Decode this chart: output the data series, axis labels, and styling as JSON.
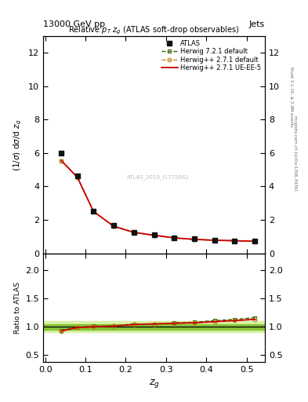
{
  "title_top": "13000 GeV pp",
  "title_top_right": "Jets",
  "plot_title": "Relative $p_T$ $z_g$ (ATLAS soft-drop observables)",
  "ylabel_main": "(1/$\\sigma$) d$\\sigma$/d $z_g$",
  "ylabel_ratio": "Ratio to ATLAS",
  "xlabel": "$z_g$",
  "right_label_top": "Rivet 3.1.10, ≥ 2.9M events",
  "right_label_bottom": "mcplots.cern.ch [arXiv:1306.3436]",
  "watermark": "ATLAS_2019_I1772062",
  "atlas_data_x": [
    0.04,
    0.08,
    0.12,
    0.17,
    0.22,
    0.27,
    0.32,
    0.37,
    0.42,
    0.47,
    0.52
  ],
  "atlas_data_y": [
    6.0,
    4.65,
    2.5,
    1.65,
    1.25,
    1.1,
    0.92,
    0.85,
    0.78,
    0.75,
    0.72
  ],
  "herwig_default_x": [
    0.04,
    0.08,
    0.12,
    0.17,
    0.22,
    0.27,
    0.32,
    0.37,
    0.42,
    0.47,
    0.52
  ],
  "herwig_default_y": [
    5.55,
    4.55,
    2.5,
    1.62,
    1.25,
    1.08,
    0.92,
    0.83,
    0.78,
    0.75,
    0.72
  ],
  "herwig_ueee5_x": [
    0.04,
    0.08,
    0.12,
    0.17,
    0.22,
    0.27,
    0.32,
    0.37,
    0.42,
    0.47,
    0.52
  ],
  "herwig_ueee5_y": [
    5.55,
    4.55,
    2.5,
    1.62,
    1.25,
    1.08,
    0.92,
    0.83,
    0.78,
    0.75,
    0.72
  ],
  "herwig721_x": [
    0.04,
    0.08,
    0.12,
    0.17,
    0.22,
    0.27,
    0.32,
    0.37,
    0.42,
    0.47,
    0.52
  ],
  "herwig721_y": [
    5.55,
    4.55,
    2.5,
    1.62,
    1.25,
    1.08,
    0.92,
    0.83,
    0.78,
    0.75,
    0.72
  ],
  "ratio_default_x": [
    0.04,
    0.08,
    0.12,
    0.17,
    0.22,
    0.27,
    0.32,
    0.37,
    0.42,
    0.47,
    0.52
  ],
  "ratio_default_y": [
    0.925,
    0.985,
    1.0,
    1.01,
    1.04,
    1.05,
    1.06,
    1.07,
    1.09,
    1.11,
    1.13
  ],
  "ratio_ueee5_x": [
    0.04,
    0.08,
    0.12,
    0.17,
    0.22,
    0.27,
    0.32,
    0.37,
    0.42,
    0.47,
    0.52
  ],
  "ratio_ueee5_y": [
    0.925,
    0.985,
    1.0,
    1.01,
    1.04,
    1.05,
    1.06,
    1.07,
    1.09,
    1.11,
    1.13
  ],
  "ratio_721_x": [
    0.04,
    0.08,
    0.12,
    0.17,
    0.22,
    0.27,
    0.32,
    0.37,
    0.42,
    0.47,
    0.52
  ],
  "ratio_721_y": [
    0.935,
    0.99,
    1.01,
    1.015,
    1.05,
    1.05,
    1.07,
    1.08,
    1.11,
    1.13,
    1.16
  ],
  "color_default": "#cc8822",
  "color_ueee5": "#cc0000",
  "color_721": "#336600",
  "color_atlas": "#111111",
  "band_inner_color": "#77bb22",
  "band_outer_color": "#ccee88",
  "ylim_main": [
    0,
    13
  ],
  "ylim_ratio": [
    0.38,
    2.3
  ],
  "xlim": [
    -0.005,
    0.545
  ],
  "yticks_main": [
    0,
    2,
    4,
    6,
    8,
    10,
    12
  ],
  "yticks_ratio": [
    0.5,
    1.0,
    1.5,
    2.0
  ],
  "xticks": [
    0.0,
    0.1,
    0.2,
    0.3,
    0.4,
    0.5
  ]
}
